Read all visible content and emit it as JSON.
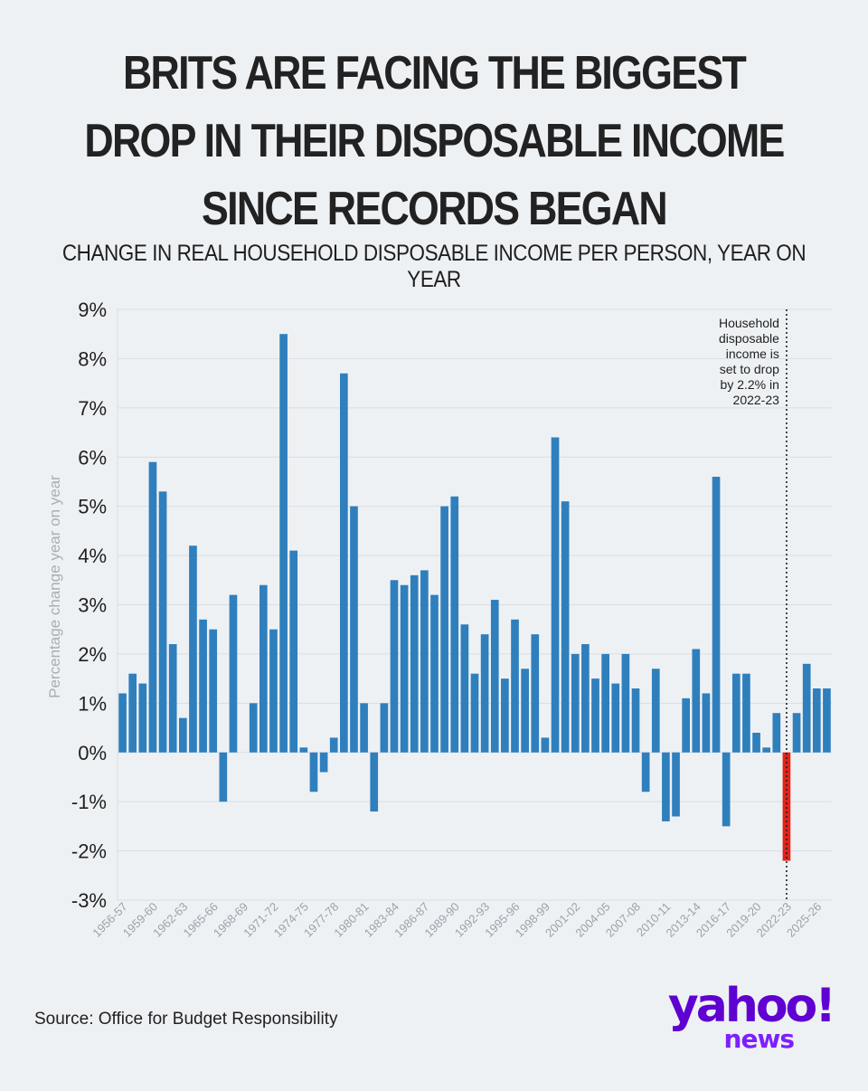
{
  "title": "BRITS ARE FACING THE BIGGEST DROP IN THEIR DISPOSABLE INCOME SINCE RECORDS BEGAN",
  "subtitle": "CHANGE IN REAL HOUSEHOLD DISPOSABLE INCOME PER PERSON, YEAR ON YEAR",
  "source": "Source: Office for Budget Responsibility",
  "logo": {
    "main": "yahoo!",
    "sub": "news"
  },
  "colors": {
    "bar": "#2f7fbd",
    "highlight": "#e2231a",
    "grid": "#d9dde2",
    "background": "#eef1f4"
  },
  "chart_data": {
    "type": "bar",
    "ylabel": "Percentage change year on year",
    "ylim": [
      -3,
      9
    ],
    "yticks": [
      "9%",
      "8%",
      "7%",
      "6%",
      "5%",
      "4%",
      "3%",
      "2%",
      "1%",
      "0%",
      "-1%",
      "-2%",
      "-3%"
    ],
    "grid": true,
    "categories": [
      "1956-57",
      "1957-58",
      "1958-59",
      "1959-60",
      "1960-61",
      "1961-62",
      "1962-63",
      "1963-64",
      "1964-65",
      "1965-66",
      "1966-67",
      "1967-68",
      "1968-69",
      "1969-70",
      "1970-71",
      "1971-72",
      "1972-73",
      "1973-74",
      "1974-75",
      "1975-76",
      "1976-77",
      "1977-78",
      "1978-79",
      "1979-80",
      "1980-81",
      "1981-82",
      "1982-83",
      "1983-84",
      "1984-85",
      "1985-86",
      "1986-87",
      "1987-88",
      "1988-89",
      "1989-90",
      "1990-91",
      "1991-92",
      "1992-93",
      "1993-94",
      "1994-95",
      "1995-96",
      "1996-97",
      "1997-98",
      "1998-99",
      "1999-00",
      "2000-01",
      "2001-02",
      "2002-03",
      "2003-04",
      "2004-05",
      "2005-06",
      "2006-07",
      "2007-08",
      "2008-09",
      "2009-10",
      "2010-11",
      "2011-12",
      "2012-13",
      "2013-14",
      "2014-15",
      "2015-16",
      "2016-17",
      "2017-18",
      "2018-19",
      "2019-20",
      "2020-21",
      "2021-22",
      "2022-23",
      "2023-24",
      "2024-25",
      "2025-26",
      "2026-27"
    ],
    "values": [
      1.2,
      1.6,
      1.4,
      5.9,
      5.3,
      2.2,
      0.7,
      4.2,
      2.7,
      2.5,
      -1.0,
      3.2,
      0.0,
      1.0,
      3.4,
      2.5,
      8.5,
      4.1,
      0.1,
      -0.8,
      -0.4,
      0.3,
      7.7,
      5.0,
      1.0,
      -1.2,
      1.0,
      3.5,
      3.4,
      3.6,
      3.7,
      3.2,
      5.0,
      5.2,
      2.6,
      1.6,
      2.4,
      3.1,
      1.5,
      2.7,
      1.7,
      2.4,
      0.3,
      6.4,
      5.1,
      2.0,
      2.2,
      1.5,
      2.0,
      1.4,
      2.0,
      1.3,
      -0.8,
      1.7,
      -1.4,
      -1.3,
      1.1,
      2.1,
      1.2,
      5.6,
      -1.5,
      1.6,
      1.6,
      0.4,
      0.1,
      0.8,
      -2.2,
      0.8,
      1.8,
      1.3,
      1.3
    ],
    "xtick_labels": [
      "1956-57",
      "1959-60",
      "1962-63",
      "1965-66",
      "1968-69",
      "1971-72",
      "1974-75",
      "1977-78",
      "1980-81",
      "1983-84",
      "1986-87",
      "1989-90",
      "1992-93",
      "1995-96",
      "1998-99",
      "2001-02",
      "2004-05",
      "2007-08",
      "2010-11",
      "2013-14",
      "2016-17",
      "2019-20",
      "2022-23",
      "2025-26"
    ],
    "highlight": "2022-23",
    "annotation": [
      "Household",
      "disposable",
      "income is",
      "set to drop",
      "by 2.2% in",
      "2022-23"
    ]
  }
}
